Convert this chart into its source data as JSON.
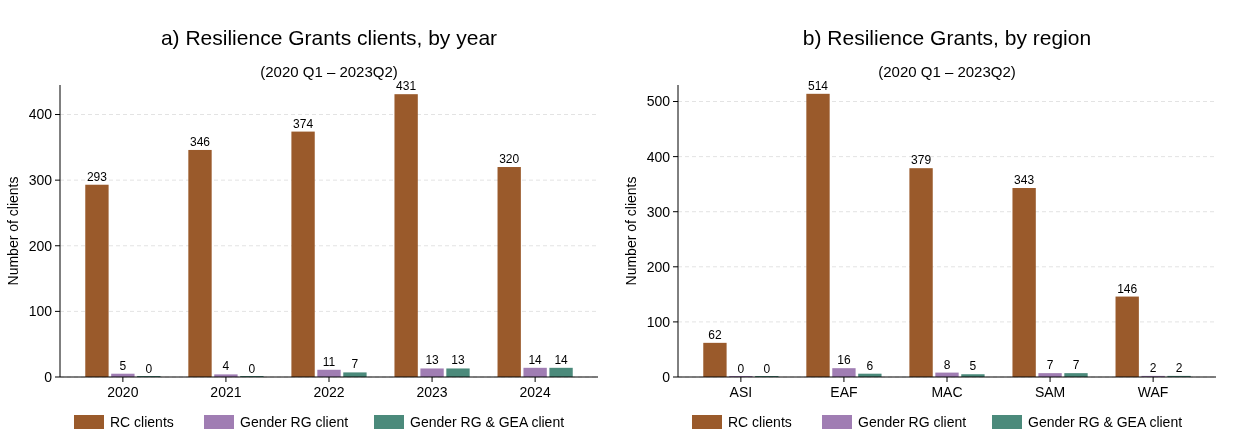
{
  "chart_data": [
    {
      "type": "bar",
      "title": "a) Resilience Grants clients, by year",
      "subtitle": "(2020 Q1 – 2023Q2)",
      "ylabel": "Number of clients",
      "categories": [
        "2020",
        "2021",
        "2022",
        "2023",
        "2024"
      ],
      "series": [
        {
          "name": "RC clients",
          "color": "#9a5a2b",
          "values": [
            293,
            346,
            374,
            431,
            320
          ]
        },
        {
          "name": "Gender RG client",
          "color": "#a07db3",
          "values": [
            5,
            4,
            11,
            13,
            14
          ]
        },
        {
          "name": "Gender RG & GEA client",
          "color": "#4b8a7b",
          "values": [
            0,
            0,
            7,
            13,
            14
          ]
        }
      ],
      "ylim": [
        0,
        445
      ],
      "yticks": [
        0,
        100,
        200,
        300,
        400
      ],
      "grid": "y",
      "legend": "bottom",
      "data_labels": true
    },
    {
      "type": "bar",
      "title": "b) Resilience Grants, by region",
      "subtitle": "(2020 Q1 – 2023Q2)",
      "ylabel": "Number of clients",
      "categories": [
        "ASI",
        "EAF",
        "MAC",
        "SAM",
        "WAF"
      ],
      "series": [
        {
          "name": "RC clients",
          "color": "#9a5a2b",
          "values": [
            62,
            514,
            379,
            343,
            146
          ]
        },
        {
          "name": "Gender RG client",
          "color": "#a07db3",
          "values": [
            0,
            16,
            8,
            7,
            2
          ]
        },
        {
          "name": "Gender RG & GEA client",
          "color": "#4b8a7b",
          "values": [
            0,
            6,
            5,
            7,
            2
          ]
        }
      ],
      "ylim": [
        0,
        530
      ],
      "yticks": [
        0,
        100,
        200,
        300,
        400,
        500
      ],
      "grid": "y",
      "legend": "bottom",
      "data_labels": true
    }
  ]
}
